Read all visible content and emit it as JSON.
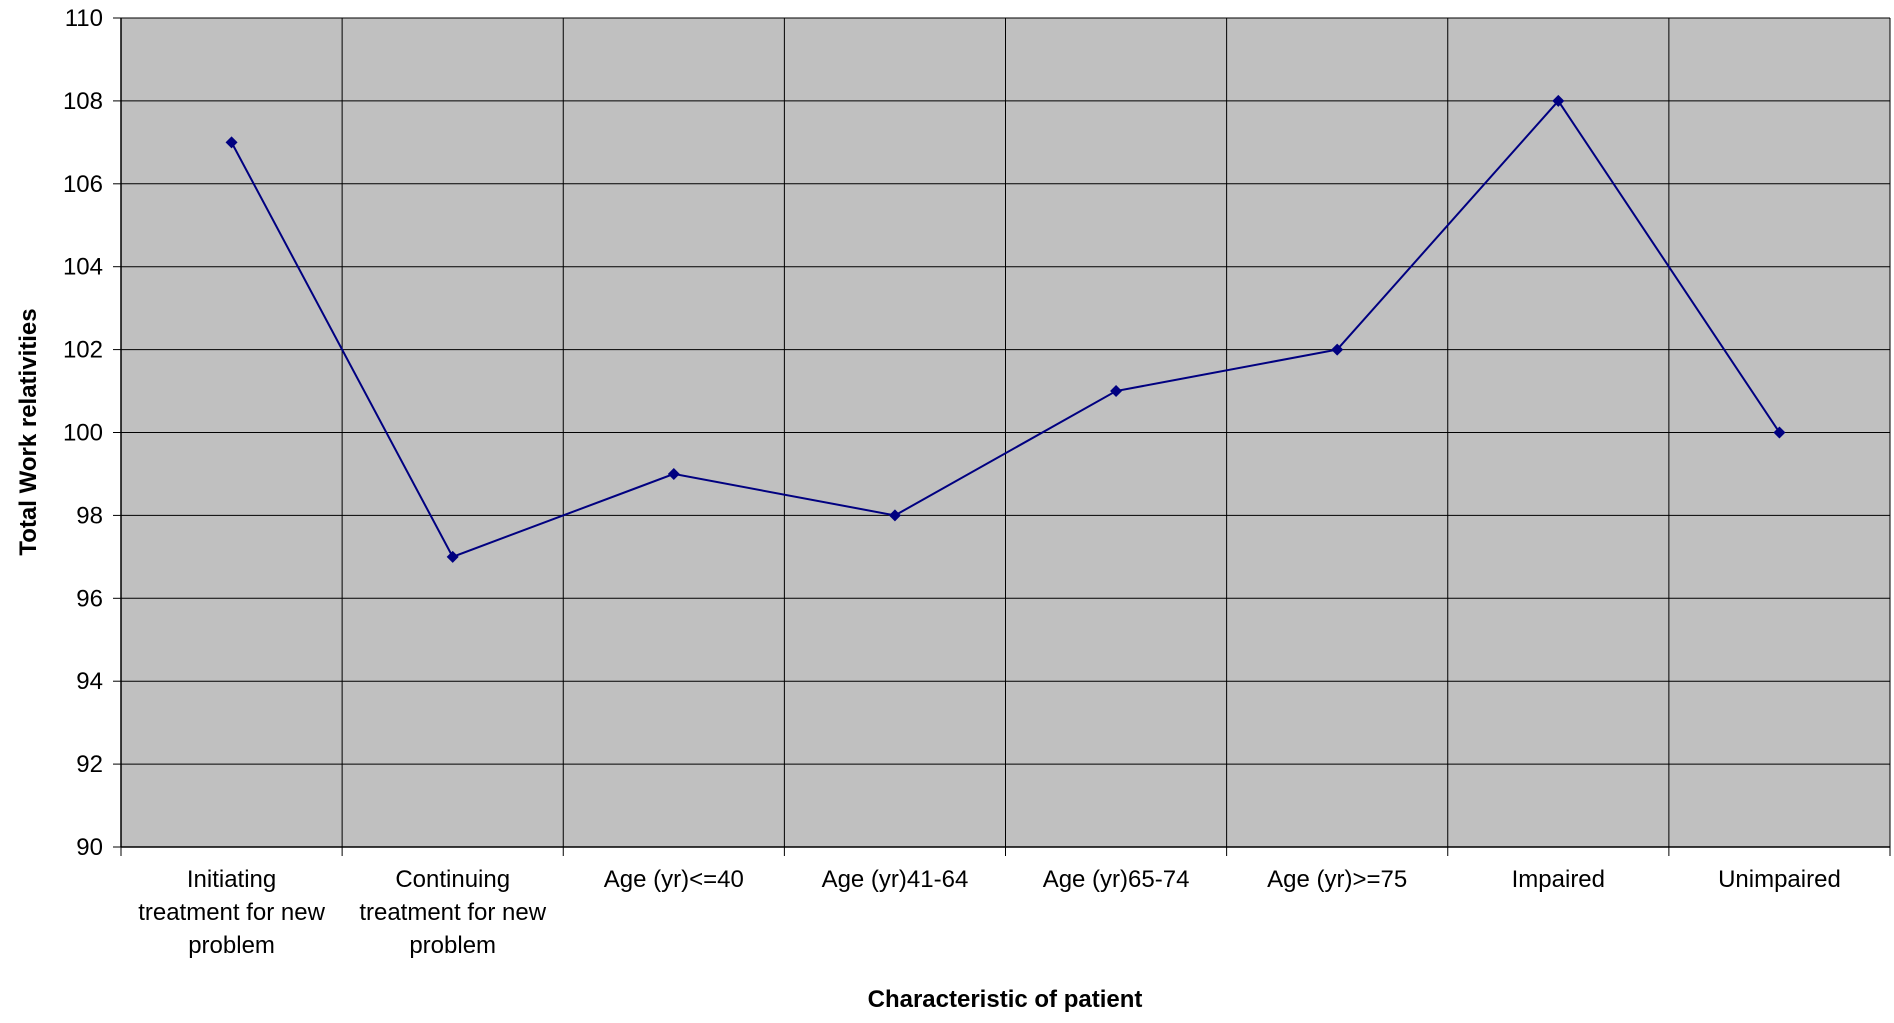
{
  "chart_data": {
    "type": "line",
    "title": "",
    "xlabel": "Characteristic of patient",
    "ylabel": "Total Work relativities",
    "ylim": [
      90,
      110
    ],
    "ytick_step": 2,
    "grid": true,
    "legend": "none",
    "categories": [
      "Initiating treatment for new problem",
      "Continuing treatment for new problem",
      "Age (yr)<=40",
      "Age (yr)41-64",
      "Age (yr)65-74",
      "Age (yr)>=75",
      "Impaired",
      "Unimpaired"
    ],
    "category_lines": [
      [
        "Initiating",
        "treatment for new",
        "problem"
      ],
      [
        "Continuing",
        "treatment for new",
        "problem"
      ],
      [
        "Age (yr)<=40"
      ],
      [
        "Age (yr)41-64"
      ],
      [
        "Age (yr)65-74"
      ],
      [
        "Age (yr)>=75"
      ],
      [
        "Impaired"
      ],
      [
        "Unimpaired"
      ]
    ],
    "series": [
      {
        "values": [
          107,
          97,
          99,
          98,
          101,
          102,
          108,
          100
        ]
      }
    ],
    "colors": {
      "plot_bg": "#c0c0c0",
      "grid": "#000000",
      "line": "#000080",
      "marker": "#000080"
    }
  }
}
